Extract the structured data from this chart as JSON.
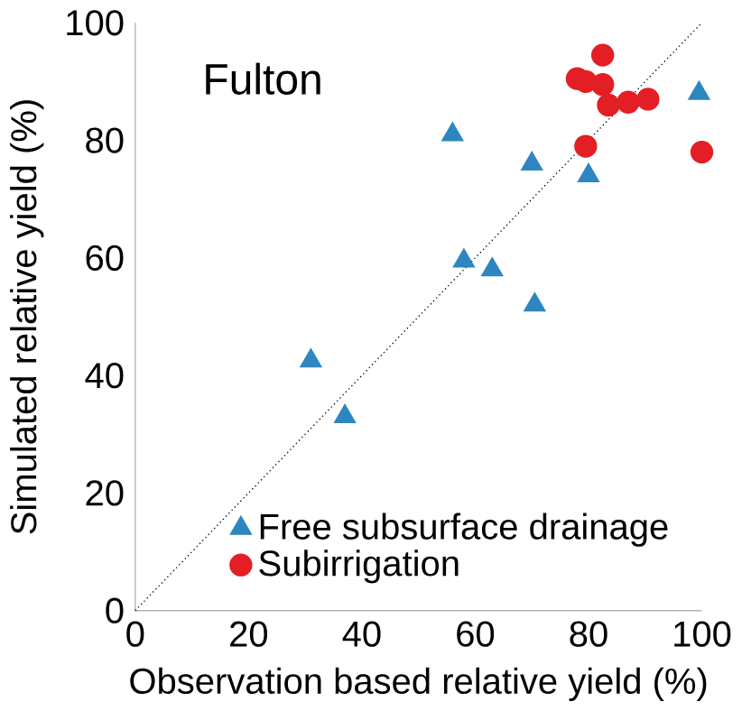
{
  "chart_data": {
    "type": "scatter",
    "title": "Fulton",
    "xlabel": "Observation based relative yield (%)",
    "ylabel": "Simulated relative yield (%)",
    "xlim": [
      0,
      100
    ],
    "ylim": [
      0,
      100
    ],
    "xticks": [
      0,
      20,
      40,
      60,
      80,
      100
    ],
    "yticks": [
      0,
      20,
      40,
      60,
      80,
      100
    ],
    "grid": false,
    "legend": "bottom right",
    "series": [
      {
        "name": "Free subsurface drainage",
        "color": "#2e86c1",
        "marker": "triangle",
        "x": [
          56,
          70,
          80,
          99.5,
          58,
          63,
          70.5,
          31,
          37
        ],
        "values": [
          81,
          76,
          74,
          88,
          59.5,
          58,
          52,
          42.5,
          33
        ]
      },
      {
        "name": "Subirrigation",
        "color": "#e31e24",
        "marker": "circle",
        "x": [
          82.5,
          78,
          79.5,
          82.5,
          83.5,
          87,
          90.5,
          79.5,
          100
        ],
        "values": [
          94.5,
          90.5,
          90,
          89.5,
          86,
          86.5,
          87,
          79,
          78
        ]
      },
      {
        "type": "line",
        "color": "#000000",
        "line_style": "dotted",
        "marker": "none",
        "x": [
          0,
          100
        ],
        "values": [
          0,
          100
        ]
      }
    ]
  }
}
